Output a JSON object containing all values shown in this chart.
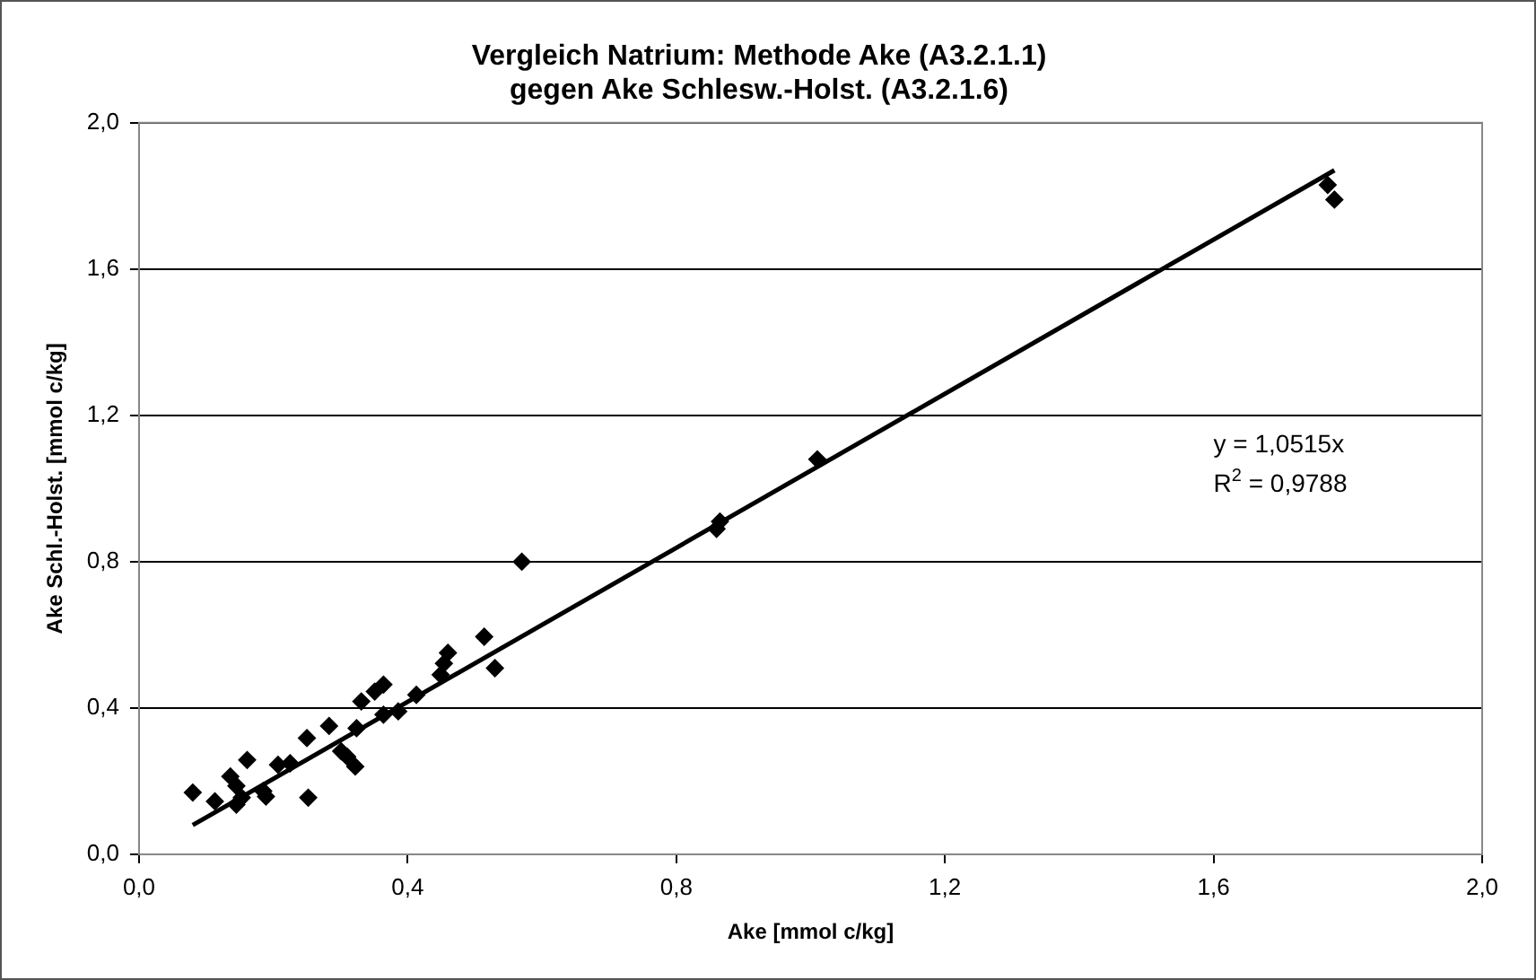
{
  "chart_data": {
    "type": "scatter",
    "title": "Vergleich Natrium: Methode Ake (A3.2.1.1)\ngegen Ake Schlesw.-Holst. (A3.2.1.6)",
    "xlabel": "Ake [mmol c/kg]",
    "ylabel": "Ake Schl.-Holst. [mmol c/kg]",
    "series": [
      {
        "color": "#000000",
        "marker": "diamond",
        "x": [
          0.08,
          0.113,
          0.136,
          0.145,
          0.145,
          0.153,
          0.161,
          0.185,
          0.189,
          0.207,
          0.225,
          0.25,
          0.252,
          0.283,
          0.301,
          0.31,
          0.322,
          0.324,
          0.331,
          0.351,
          0.364,
          0.364,
          0.386,
          0.413,
          0.449,
          0.454,
          0.46,
          0.514,
          0.53,
          0.57,
          0.86,
          0.865,
          1.01,
          1.77,
          1.78
        ],
        "values": [
          0.169,
          0.145,
          0.213,
          0.187,
          0.136,
          0.155,
          0.258,
          0.173,
          0.158,
          0.245,
          0.249,
          0.318,
          0.155,
          0.351,
          0.282,
          0.267,
          0.24,
          0.345,
          0.418,
          0.445,
          0.464,
          0.382,
          0.391,
          0.436,
          0.491,
          0.522,
          0.551,
          0.595,
          0.509,
          0.8,
          0.89,
          0.91,
          1.08,
          1.83,
          1.79
        ]
      },
      {
        "type": "line",
        "color": "#000000",
        "marker": "none",
        "line_style": "solid",
        "x": [
          0.08,
          1.78
        ],
        "values": [
          0.08,
          1.87
        ]
      }
    ],
    "xlim": [
      0,
      2
    ],
    "ylim": [
      0,
      2
    ],
    "xticks": [
      {
        "value": 0,
        "label": "0,0"
      },
      {
        "value": 0.4,
        "label": "0,4"
      },
      {
        "value": 0.8,
        "label": "0,8"
      },
      {
        "value": 1.2,
        "label": "1,2"
      },
      {
        "value": 1.6,
        "label": "1,6"
      },
      {
        "value": 2,
        "label": "2,0"
      }
    ],
    "yticks": [
      {
        "value": 0,
        "label": "0,0"
      },
      {
        "value": 0.4,
        "label": "0,4"
      },
      {
        "value": 0.8,
        "label": "0,8"
      },
      {
        "value": 1.2,
        "label": "1,2"
      },
      {
        "value": 1.6,
        "label": "1,6"
      },
      {
        "value": 2,
        "label": "2,0"
      }
    ],
    "grid": "y",
    "legend": false,
    "annotations": [
      "y = 1,0515x",
      "R$^{2}$ = 0,9788"
    ]
  }
}
